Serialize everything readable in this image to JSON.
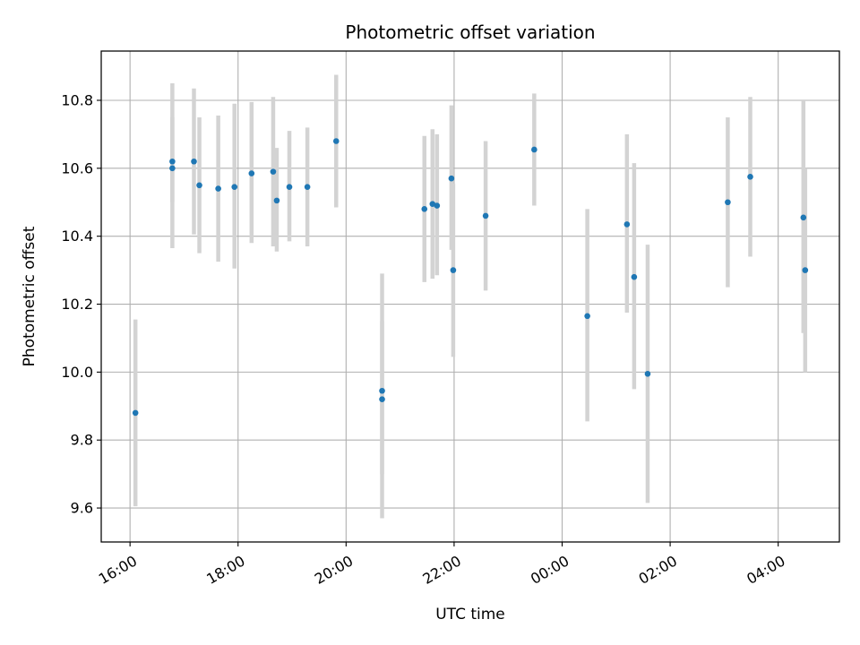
{
  "chart_data": {
    "type": "scatter",
    "title": "Photometric offset variation",
    "xlabel": "UTC time",
    "ylabel": "Photometric offset",
    "xlim": [
      "15:28",
      "29:08"
    ],
    "ylim": [
      9.5,
      10.945
    ],
    "x_ticks": [
      "16:00",
      "18:00",
      "20:00",
      "22:00",
      "24:00",
      "26:00",
      "28:00"
    ],
    "x_tick_labels": [
      "16:00",
      "18:00",
      "20:00",
      "22:00",
      "00:00",
      "02:00",
      "04:00"
    ],
    "y_ticks": [
      9.6,
      9.8,
      10.0,
      10.2,
      10.4,
      10.6,
      10.8
    ],
    "y_tick_labels": [
      "9.6",
      "9.8",
      "10.0",
      "10.2",
      "10.4",
      "10.6",
      "10.8"
    ],
    "grid": true,
    "colors": {
      "marker": "#1f77b4",
      "errorbar": "#d3d3d3",
      "grid": "#b0b0b0"
    },
    "points": [
      {
        "x": "16:06",
        "y": 9.88,
        "low": 9.605,
        "high": 10.155
      },
      {
        "x": "16:47",
        "y": 10.6,
        "low": 10.365,
        "high": 10.85
      },
      {
        "x": "16:47",
        "y": 10.62,
        "low": 10.5,
        "high": 10.75
      },
      {
        "x": "17:11",
        "y": 10.62,
        "low": 10.405,
        "high": 10.835
      },
      {
        "x": "17:17",
        "y": 10.55,
        "low": 10.35,
        "high": 10.75
      },
      {
        "x": "17:38",
        "y": 10.54,
        "low": 10.325,
        "high": 10.755
      },
      {
        "x": "17:56",
        "y": 10.545,
        "low": 10.305,
        "high": 10.79
      },
      {
        "x": "18:15",
        "y": 10.585,
        "low": 10.38,
        "high": 10.795
      },
      {
        "x": "18:39",
        "y": 10.59,
        "low": 10.37,
        "high": 10.81
      },
      {
        "x": "18:43",
        "y": 10.505,
        "low": 10.355,
        "high": 10.66
      },
      {
        "x": "18:57",
        "y": 10.545,
        "low": 10.385,
        "high": 10.71
      },
      {
        "x": "19:17",
        "y": 10.545,
        "low": 10.37,
        "high": 10.72
      },
      {
        "x": "19:49",
        "y": 10.68,
        "low": 10.485,
        "high": 10.875
      },
      {
        "x": "20:40",
        "y": 9.945,
        "low": 9.7,
        "high": 10.29
      },
      {
        "x": "20:40",
        "y": 9.92,
        "low": 9.57,
        "high": 10.15
      },
      {
        "x": "21:27",
        "y": 10.48,
        "low": 10.265,
        "high": 10.695
      },
      {
        "x": "21:36",
        "y": 10.495,
        "low": 10.275,
        "high": 10.715
      },
      {
        "x": "21:41",
        "y": 10.49,
        "low": 10.285,
        "high": 10.7
      },
      {
        "x": "21:57",
        "y": 10.57,
        "low": 10.36,
        "high": 10.785
      },
      {
        "x": "21:59",
        "y": 10.3,
        "low": 10.045,
        "high": 10.555
      },
      {
        "x": "22:35",
        "y": 10.46,
        "low": 10.24,
        "high": 10.68
      },
      {
        "x": "23:29",
        "y": 10.655,
        "low": 10.49,
        "high": 10.82
      },
      {
        "x": "24:28",
        "y": 10.165,
        "low": 9.855,
        "high": 10.48
      },
      {
        "x": "25:12",
        "y": 10.435,
        "low": 10.175,
        "high": 10.7
      },
      {
        "x": "25:20",
        "y": 10.28,
        "low": 9.95,
        "high": 10.615
      },
      {
        "x": "25:35",
        "y": 9.995,
        "low": 9.615,
        "high": 10.375
      },
      {
        "x": "27:04",
        "y": 10.5,
        "low": 10.25,
        "high": 10.75
      },
      {
        "x": "27:29",
        "y": 10.575,
        "low": 10.34,
        "high": 10.81
      },
      {
        "x": "28:28",
        "y": 10.455,
        "low": 10.115,
        "high": 10.8
      },
      {
        "x": "28:30",
        "y": 10.3,
        "low": 10.0,
        "high": 10.6
      }
    ]
  }
}
